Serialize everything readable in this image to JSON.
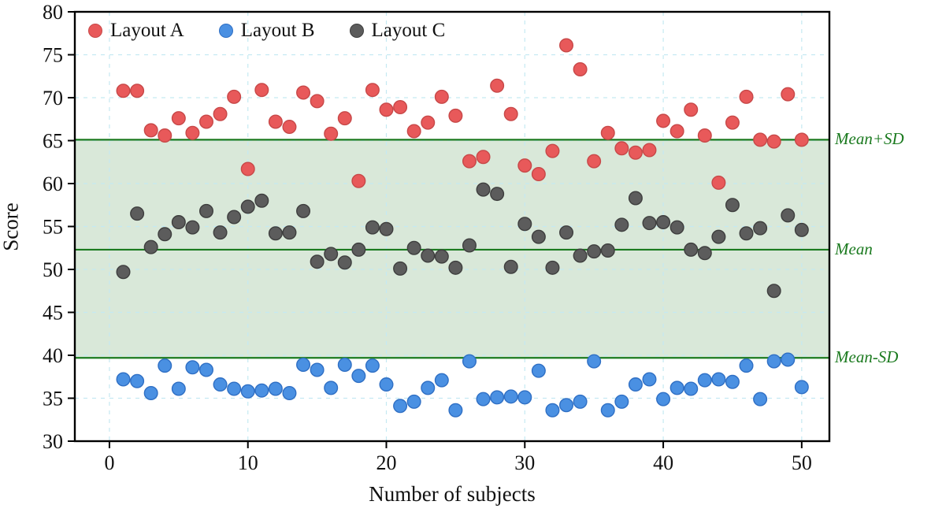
{
  "chart_data": {
    "type": "scatter",
    "title": "",
    "xlabel": "Number of subjects",
    "ylabel": "Score",
    "xlim": [
      -2.5,
      52
    ],
    "ylim": [
      30,
      80
    ],
    "x_ticks": [
      0,
      10,
      20,
      30,
      40,
      50
    ],
    "y_ticks": [
      30,
      35,
      40,
      45,
      50,
      55,
      60,
      65,
      70,
      75,
      80
    ],
    "grid": "dashed light-blue at major ticks",
    "legend_position": "top-left inside plot",
    "colors": {
      "layout_a_fill": "#e8595a",
      "layout_a_edge": "#c74848",
      "layout_b_fill": "#4a90e2",
      "layout_b_edge": "#2f6fc4",
      "layout_c_fill": "#5c5c5c",
      "layout_c_edge": "#3e3e3e",
      "band_fill": "rgba(130,180,130,0.30)",
      "ref_line": "#1b7a1f",
      "grid_line": "#c5e9f2",
      "axis_frame": "#000000"
    },
    "reference_lines": [
      {
        "label": "Mean+SD",
        "value": 65.1
      },
      {
        "label": "Mean",
        "value": 52.3
      },
      {
        "label": "Mean-SD",
        "value": 39.7
      }
    ],
    "band": {
      "from": 39.7,
      "to": 65.1
    },
    "series": [
      {
        "name": "Layout A",
        "points": [
          [
            1,
            70.8
          ],
          [
            2,
            70.8
          ],
          [
            3,
            66.2
          ],
          [
            4,
            65.6
          ],
          [
            5,
            67.6
          ],
          [
            6,
            65.9
          ],
          [
            7,
            67.2
          ],
          [
            8,
            68.1
          ],
          [
            9,
            70.1
          ],
          [
            10,
            61.7
          ],
          [
            11,
            70.9
          ],
          [
            12,
            67.2
          ],
          [
            13,
            66.6
          ],
          [
            14,
            70.6
          ],
          [
            15,
            69.6
          ],
          [
            16,
            65.8
          ],
          [
            17,
            67.6
          ],
          [
            18,
            60.3
          ],
          [
            19,
            70.9
          ],
          [
            20,
            68.6
          ],
          [
            21,
            68.9
          ],
          [
            22,
            66.1
          ],
          [
            23,
            67.1
          ],
          [
            24,
            70.1
          ],
          [
            25,
            67.9
          ],
          [
            26,
            62.6
          ],
          [
            27,
            63.1
          ],
          [
            28,
            71.4
          ],
          [
            29,
            68.1
          ],
          [
            30,
            62.1
          ],
          [
            31,
            61.1
          ],
          [
            32,
            63.8
          ],
          [
            33,
            76.1
          ],
          [
            34,
            73.3
          ],
          [
            35,
            62.6
          ],
          [
            36,
            65.9
          ],
          [
            37,
            64.1
          ],
          [
            38,
            63.6
          ],
          [
            39,
            63.9
          ],
          [
            40,
            67.3
          ],
          [
            41,
            66.1
          ],
          [
            42,
            68.6
          ],
          [
            43,
            65.6
          ],
          [
            44,
            60.1
          ],
          [
            45,
            67.1
          ],
          [
            46,
            70.1
          ],
          [
            47,
            65.1
          ],
          [
            48,
            64.9
          ],
          [
            49,
            70.4
          ],
          [
            50,
            65.1
          ]
        ]
      },
      {
        "name": "Layout B",
        "points": [
          [
            1,
            37.2
          ],
          [
            2,
            37.0
          ],
          [
            3,
            35.6
          ],
          [
            4,
            38.8
          ],
          [
            5,
            36.1
          ],
          [
            6,
            38.6
          ],
          [
            7,
            38.3
          ],
          [
            8,
            36.6
          ],
          [
            9,
            36.1
          ],
          [
            10,
            35.8
          ],
          [
            11,
            35.9
          ],
          [
            12,
            36.1
          ],
          [
            13,
            35.6
          ],
          [
            14,
            38.9
          ],
          [
            15,
            38.3
          ],
          [
            16,
            36.2
          ],
          [
            17,
            38.9
          ],
          [
            18,
            37.6
          ],
          [
            19,
            38.8
          ],
          [
            20,
            36.6
          ],
          [
            21,
            34.1
          ],
          [
            22,
            34.6
          ],
          [
            23,
            36.2
          ],
          [
            24,
            37.1
          ],
          [
            25,
            33.6
          ],
          [
            26,
            39.3
          ],
          [
            27,
            34.9
          ],
          [
            28,
            35.1
          ],
          [
            29,
            35.2
          ],
          [
            30,
            35.1
          ],
          [
            31,
            38.2
          ],
          [
            32,
            33.6
          ],
          [
            33,
            34.2
          ],
          [
            34,
            34.6
          ],
          [
            35,
            39.3
          ],
          [
            36,
            33.6
          ],
          [
            37,
            34.6
          ],
          [
            38,
            36.6
          ],
          [
            39,
            37.2
          ],
          [
            40,
            34.9
          ],
          [
            41,
            36.2
          ],
          [
            42,
            36.1
          ],
          [
            43,
            37.1
          ],
          [
            44,
            37.2
          ],
          [
            45,
            36.9
          ],
          [
            46,
            38.8
          ],
          [
            47,
            34.9
          ],
          [
            48,
            39.3
          ],
          [
            49,
            39.5
          ],
          [
            50,
            36.3
          ]
        ]
      },
      {
        "name": "Layout C",
        "points": [
          [
            1,
            49.7
          ],
          [
            2,
            56.5
          ],
          [
            3,
            52.6
          ],
          [
            4,
            54.1
          ],
          [
            5,
            55.5
          ],
          [
            6,
            54.9
          ],
          [
            7,
            56.8
          ],
          [
            8,
            54.3
          ],
          [
            9,
            56.1
          ],
          [
            10,
            57.3
          ],
          [
            11,
            58.0
          ],
          [
            12,
            54.2
          ],
          [
            13,
            54.3
          ],
          [
            14,
            56.8
          ],
          [
            15,
            50.9
          ],
          [
            16,
            51.8
          ],
          [
            17,
            50.8
          ],
          [
            18,
            52.3
          ],
          [
            19,
            54.9
          ],
          [
            20,
            54.7
          ],
          [
            21,
            50.1
          ],
          [
            22,
            52.5
          ],
          [
            23,
            51.6
          ],
          [
            24,
            51.5
          ],
          [
            25,
            50.2
          ],
          [
            26,
            52.8
          ],
          [
            27,
            59.3
          ],
          [
            28,
            58.8
          ],
          [
            29,
            50.3
          ],
          [
            30,
            55.3
          ],
          [
            31,
            53.8
          ],
          [
            32,
            50.2
          ],
          [
            33,
            54.3
          ],
          [
            34,
            51.6
          ],
          [
            35,
            52.1
          ],
          [
            36,
            52.2
          ],
          [
            37,
            55.2
          ],
          [
            38,
            58.3
          ],
          [
            39,
            55.4
          ],
          [
            40,
            55.5
          ],
          [
            41,
            54.9
          ],
          [
            42,
            52.3
          ],
          [
            43,
            51.9
          ],
          [
            44,
            53.8
          ],
          [
            45,
            57.5
          ],
          [
            46,
            54.2
          ],
          [
            47,
            54.8
          ],
          [
            48,
            47.5
          ],
          [
            49,
            56.3
          ],
          [
            50,
            54.6
          ]
        ]
      }
    ]
  },
  "legend": {
    "items": [
      {
        "label": "Layout A"
      },
      {
        "label": "Layout B"
      },
      {
        "label": "Layout C"
      }
    ]
  },
  "annotations": {
    "mean_plus_sd": "Mean+SD",
    "mean": "Mean",
    "mean_minus_sd": "Mean-SD"
  },
  "axes": {
    "y_title": "Score",
    "x_title": "Number of subjects"
  }
}
